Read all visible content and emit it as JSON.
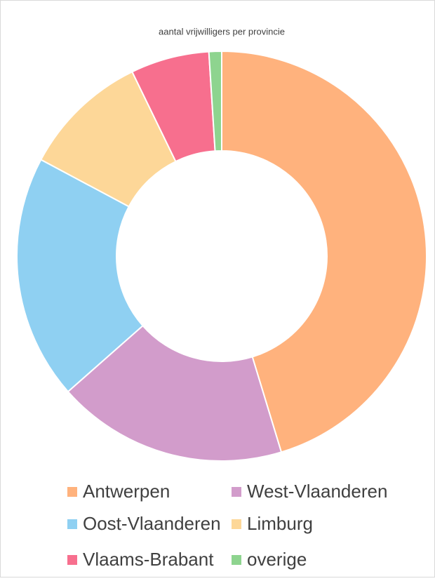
{
  "chart_data": {
    "type": "donut",
    "title": "aantal vrijwilligers per provincie",
    "categories": [
      "Antwerpen",
      "West-Vlaanderen",
      "Oost-Vlaanderen",
      "Limburg",
      "Vlaams-Brabant",
      "overige"
    ],
    "values": [
      45.3,
      18.2,
      19.3,
      10,
      6.2,
      1
    ],
    "colors": [
      "#ffb27d",
      "#d29ccb",
      "#8fd0f2",
      "#fdd798",
      "#f76f8e",
      "#8ed48f"
    ]
  }
}
